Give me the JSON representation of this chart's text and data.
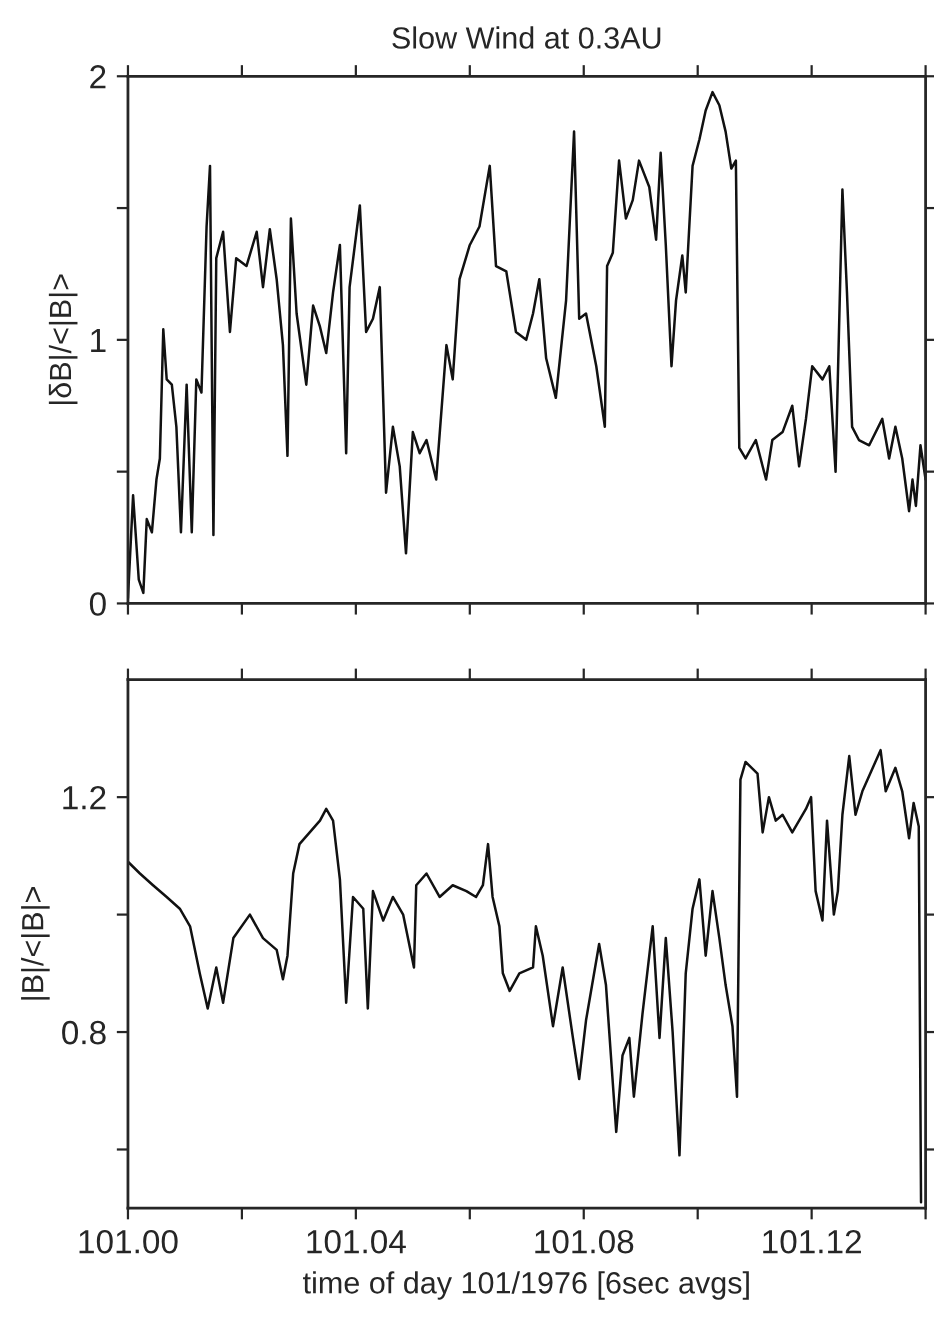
{
  "chart_data": [
    {
      "type": "line",
      "title": "Slow Wind at 0.3AU",
      "ylabel": "|δB|/<|B|>",
      "tick_labels": "y",
      "xlim": [
        101.0,
        101.14
      ],
      "xticks": [
        {
          "value": 101.0,
          "label": null
        },
        {
          "value": 101.02,
          "label": null
        },
        {
          "value": 101.04,
          "label": null
        },
        {
          "value": 101.06,
          "label": null
        },
        {
          "value": 101.08,
          "label": null
        },
        {
          "value": 101.1,
          "label": null
        },
        {
          "value": 101.12,
          "label": null
        },
        {
          "value": 101.14,
          "label": null
        }
      ],
      "ylim": [
        0,
        2
      ],
      "yticks": [
        0,
        {
          "value": 0.5,
          "label": null
        },
        1,
        {
          "value": 1.5,
          "label": null
        },
        2
      ],
      "series": [
        {
          "color": "#111111",
          "x": [
            101.0,
            101.0009,
            101.0019,
            101.0027,
            101.0033,
            101.0042,
            101.005,
            101.0056,
            101.0062,
            101.0068,
            101.0077,
            101.0085,
            101.0093,
            101.0103,
            101.0112,
            101.012,
            101.0129,
            101.0138,
            101.0144,
            101.015,
            101.0155,
            101.0167,
            101.0179,
            101.019,
            101.0208,
            101.0226,
            101.0237,
            101.0249,
            101.0261,
            101.0272,
            101.028,
            101.0286,
            101.0296,
            101.0313,
            101.0325,
            101.0337,
            101.0348,
            101.036,
            101.0372,
            101.0383,
            101.0389,
            101.0407,
            101.0418,
            101.043,
            101.0442,
            101.0453,
            101.0465,
            101.0477,
            101.0488,
            101.05,
            101.0512,
            101.0524,
            101.0541,
            101.0559,
            101.057,
            101.0582,
            101.06,
            101.0617,
            101.0635,
            101.0646,
            101.0664,
            101.0681,
            101.0699,
            101.0711,
            101.0722,
            101.0734,
            101.0751,
            101.0769,
            101.0783,
            101.0792,
            101.0804,
            101.0822,
            101.0837,
            101.0841,
            101.0851,
            101.0862,
            101.0874,
            101.0886,
            101.0897,
            101.0915,
            101.0927,
            101.0935,
            101.0944,
            101.0954,
            101.0962,
            101.0973,
            101.0979,
            101.0991,
            101.1003,
            101.1014,
            101.1026,
            101.1038,
            101.1049,
            101.1059,
            101.1067,
            101.1073,
            101.1084,
            101.1102,
            101.112,
            101.1131,
            101.1149,
            101.1166,
            101.1178,
            101.119,
            101.1201,
            101.1219,
            101.1231,
            101.1242,
            101.1254,
            101.1262,
            101.1271,
            101.1283,
            101.1301,
            101.1324,
            101.1336,
            101.1347,
            101.1359,
            101.1371,
            101.1377,
            101.1383,
            101.1391,
            101.14
          ],
          "values": [
            0.02,
            0.41,
            0.09,
            0.04,
            0.32,
            0.27,
            0.47,
            0.55,
            1.04,
            0.85,
            0.83,
            0.67,
            0.27,
            0.83,
            0.27,
            0.85,
            0.8,
            1.43,
            1.66,
            0.26,
            1.31,
            1.41,
            1.03,
            1.31,
            1.28,
            1.41,
            1.2,
            1.42,
            1.23,
            0.98,
            0.56,
            1.46,
            1.1,
            0.83,
            1.13,
            1.05,
            0.95,
            1.18,
            1.36,
            0.57,
            1.2,
            1.51,
            1.03,
            1.08,
            1.2,
            0.42,
            0.67,
            0.52,
            0.19,
            0.65,
            0.57,
            0.62,
            0.47,
            0.98,
            0.85,
            1.23,
            1.36,
            1.43,
            1.66,
            1.28,
            1.26,
            1.03,
            1.0,
            1.1,
            1.23,
            0.93,
            0.78,
            1.15,
            1.79,
            1.08,
            1.1,
            0.9,
            0.67,
            1.28,
            1.33,
            1.68,
            1.46,
            1.53,
            1.68,
            1.58,
            1.38,
            1.71,
            1.36,
            0.9,
            1.15,
            1.32,
            1.18,
            1.66,
            1.76,
            1.87,
            1.94,
            1.89,
            1.79,
            1.65,
            1.68,
            0.59,
            0.55,
            0.62,
            0.47,
            0.62,
            0.65,
            0.75,
            0.52,
            0.7,
            0.9,
            0.85,
            0.9,
            0.5,
            1.57,
            1.18,
            0.67,
            0.62,
            0.6,
            0.7,
            0.55,
            0.67,
            0.55,
            0.35,
            0.47,
            0.37,
            0.6,
            0.47
          ]
        }
      ]
    },
    {
      "type": "line",
      "ylabel": "|B|/<|B|>",
      "xlabel": "time of day 101/1976 [6sec avgs]",
      "xlim": [
        101.0,
        101.14
      ],
      "xticks": [
        {
          "value": 101.0,
          "label": "101.00"
        },
        {
          "value": 101.02,
          "label": null
        },
        {
          "value": 101.04,
          "label": "101.04"
        },
        {
          "value": 101.06,
          "label": null
        },
        {
          "value": 101.08,
          "label": "101.08"
        },
        {
          "value": 101.1,
          "label": null
        },
        {
          "value": 101.12,
          "label": "101.12"
        },
        {
          "value": 101.14,
          "label": null
        }
      ],
      "ylim": [
        0.5,
        1.4
      ],
      "yticks": [
        {
          "value": 0.6,
          "label": null
        },
        0.8,
        {
          "value": 1.0,
          "label": null
        },
        1.2
      ],
      "series": [
        {
          "color": "#111111",
          "x": [
            101.0,
            101.0021,
            101.0044,
            101.0068,
            101.0091,
            101.0109,
            101.0126,
            101.014,
            101.0155,
            101.0167,
            101.0185,
            101.0214,
            101.0237,
            101.0261,
            101.0272,
            101.028,
            101.029,
            101.0301,
            101.0319,
            101.0337,
            101.0348,
            101.036,
            101.0372,
            101.0383,
            101.0395,
            101.0413,
            101.0421,
            101.043,
            101.0448,
            101.0465,
            101.0483,
            101.0502,
            101.0506,
            101.0524,
            101.0547,
            101.057,
            101.0594,
            101.0611,
            101.0623,
            101.0632,
            101.064,
            101.0652,
            101.0658,
            101.067,
            101.0687,
            101.0711,
            101.0716,
            101.0728,
            101.0746,
            101.0763,
            101.0781,
            101.0792,
            101.0804,
            101.0827,
            101.0839,
            101.0857,
            101.0868,
            101.088,
            101.0888,
            101.0903,
            101.0921,
            101.0933,
            101.0944,
            101.0956,
            101.0968,
            101.0979,
            101.0991,
            101.1003,
            101.1014,
            101.1026,
            101.1038,
            101.1049,
            101.1061,
            101.1069,
            101.1075,
            101.1084,
            101.1105,
            101.1114,
            101.1125,
            101.1137,
            101.1149,
            101.1166,
            101.119,
            101.1199,
            101.1207,
            101.1219,
            101.1227,
            101.1239,
            101.1246,
            101.1254,
            101.1266,
            101.1277,
            101.1289,
            101.1321,
            101.133,
            101.1347,
            101.1359,
            101.1371,
            101.1379,
            101.1388,
            101.1392
          ],
          "values": [
            1.09,
            1.07,
            1.05,
            1.03,
            1.01,
            0.98,
            0.9,
            0.84,
            0.91,
            0.85,
            0.96,
            1.0,
            0.96,
            0.94,
            0.89,
            0.93,
            1.07,
            1.12,
            1.14,
            1.16,
            1.18,
            1.16,
            1.06,
            0.85,
            1.03,
            1.01,
            0.84,
            1.04,
            0.99,
            1.03,
            1.0,
            0.91,
            1.05,
            1.07,
            1.03,
            1.05,
            1.04,
            1.03,
            1.05,
            1.12,
            1.03,
            0.98,
            0.9,
            0.87,
            0.9,
            0.91,
            0.98,
            0.93,
            0.81,
            0.91,
            0.79,
            0.72,
            0.82,
            0.95,
            0.88,
            0.63,
            0.76,
            0.79,
            0.69,
            0.83,
            0.98,
            0.79,
            0.96,
            0.8,
            0.59,
            0.9,
            1.01,
            1.06,
            0.93,
            1.04,
            0.96,
            0.88,
            0.81,
            0.69,
            1.23,
            1.26,
            1.24,
            1.14,
            1.2,
            1.16,
            1.17,
            1.14,
            1.18,
            1.2,
            1.04,
            0.99,
            1.16,
            1.0,
            1.04,
            1.17,
            1.27,
            1.17,
            1.21,
            1.28,
            1.21,
            1.25,
            1.21,
            1.13,
            1.19,
            1.15,
            0.51
          ]
        }
      ]
    }
  ]
}
